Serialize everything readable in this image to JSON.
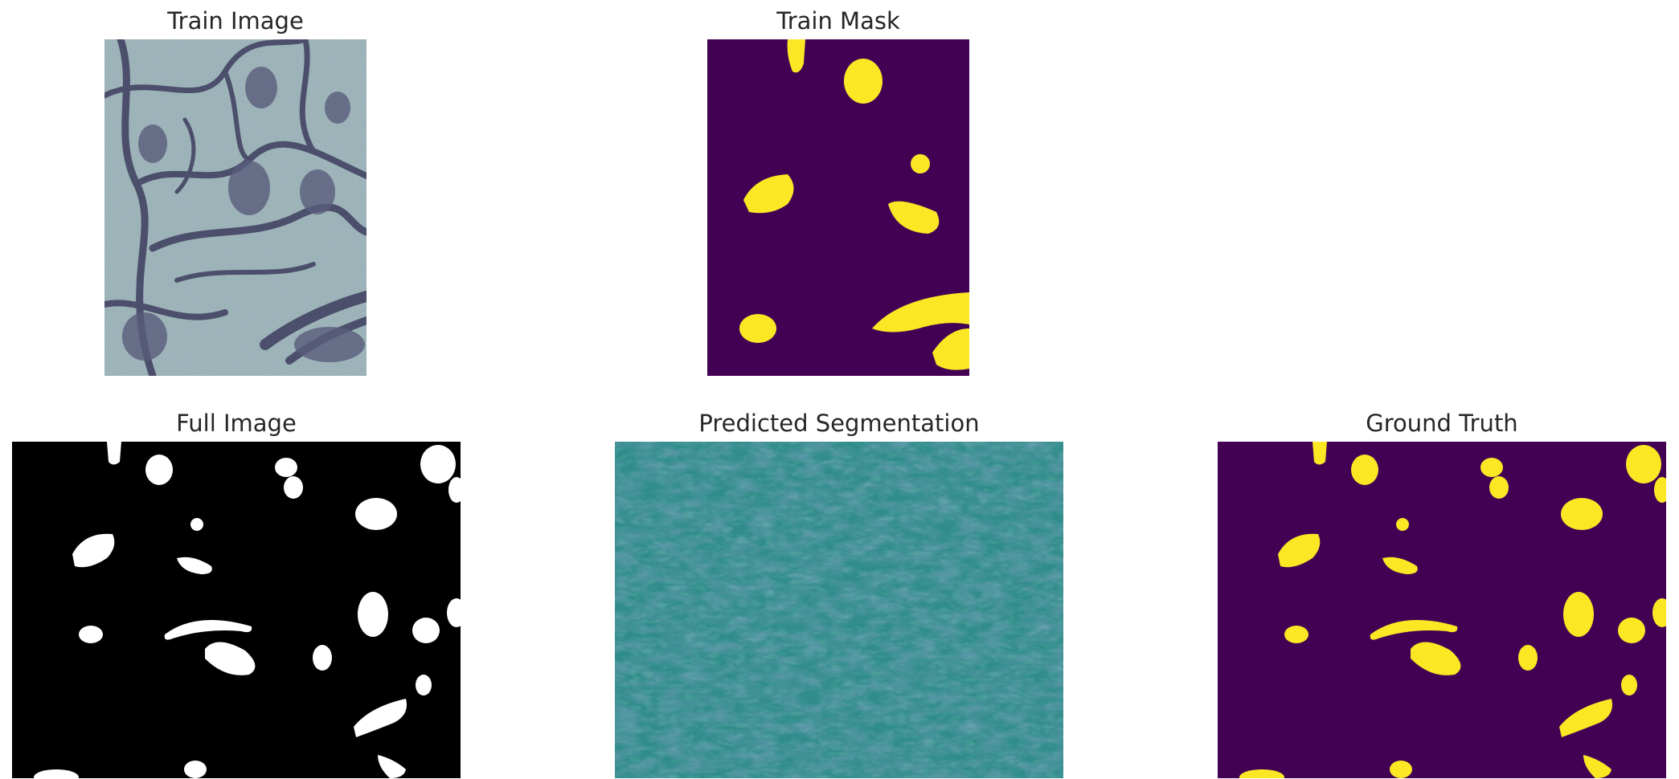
{
  "panels": {
    "train_image": {
      "title": "Train Image"
    },
    "train_mask": {
      "title": "Train Mask"
    },
    "full_image": {
      "title": "Full Image"
    },
    "predicted_segmentation": {
      "title": "Predicted Segmentation"
    },
    "ground_truth": {
      "title": "Ground Truth"
    }
  },
  "colors": {
    "mask_background": "#440154",
    "mask_foreground": "#fde725",
    "binary_background": "#000000",
    "binary_foreground": "#ffffff",
    "prediction_base": "#2f8c8a",
    "prediction_dark": "#3b5e8c",
    "prediction_light": "#4fb98a",
    "em_base": "#a9c6c6",
    "em_membrane": "#3a3c5c"
  },
  "colormap": "viridis"
}
